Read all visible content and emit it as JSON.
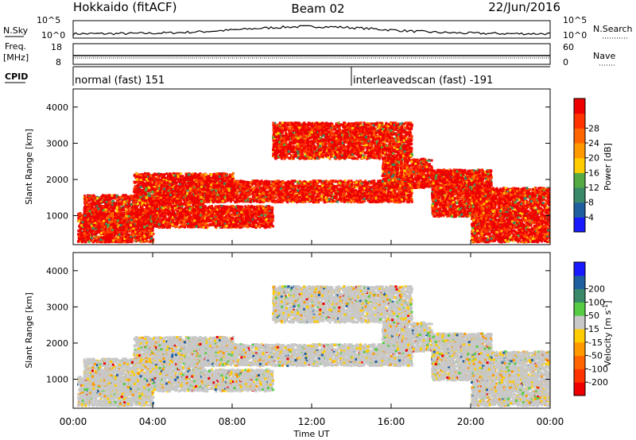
{
  "header": {
    "title": "Hokkaido (fitACF)",
    "beam": "Beam 02",
    "date": "22/Jun/2016"
  },
  "strips": {
    "nsky_label": "N.Sky",
    "nsearch_label": "N.Search",
    "count_ticks": [
      "10^5",
      "10^0"
    ],
    "freq_label": "Freq.",
    "freq_unit": "[MHz]",
    "freq_ticks": [
      "18",
      "8"
    ],
    "nave_label": "Nave",
    "nave_ticks": [
      "60",
      "0"
    ],
    "cpid_label": "CPID",
    "cpid_segments": [
      {
        "label": "normal (fast) 151",
        "start_hour": 0
      },
      {
        "label": "interleavedscan (fast) -191",
        "start_hour": 14
      }
    ]
  },
  "chart_data": [
    {
      "type": "heatmap",
      "quantity": "power",
      "ylabel": "Slant Range [km]",
      "ylim": [
        200,
        4500
      ],
      "yticks": [
        "1000",
        "2000",
        "3000",
        "4000"
      ],
      "xlim": [
        0,
        24
      ],
      "colorbar": {
        "label": "Power [dB]",
        "tick_labels": [
          "4",
          "8",
          "12",
          "16",
          "20",
          "24",
          "28"
        ],
        "colors": [
          "#1a1aff",
          "#1f5fa0",
          "#3a8a6a",
          "#55aa44",
          "#ffcc00",
          "#ff9900",
          "#ff6600",
          "#ff3300",
          "#ee0000"
        ]
      },
      "echo_bands": [
        {
          "start_hour": 0.2,
          "end_hour": 4.0,
          "range_km": [
            300,
            1100
          ]
        },
        {
          "start_hour": 0.5,
          "end_hour": 6.5,
          "range_km": [
            700,
            1600
          ]
        },
        {
          "start_hour": 3.0,
          "end_hour": 8.0,
          "range_km": [
            1500,
            2200
          ]
        },
        {
          "start_hour": 6.0,
          "end_hour": 17.0,
          "range_km": [
            1400,
            2000
          ]
        },
        {
          "start_hour": 6.0,
          "end_hour": 10.0,
          "range_km": [
            700,
            1300
          ]
        },
        {
          "start_hour": 15.5,
          "end_hour": 18.0,
          "range_km": [
            1800,
            2600
          ]
        },
        {
          "start_hour": 18.0,
          "end_hour": 21.0,
          "range_km": [
            1000,
            2300
          ]
        },
        {
          "start_hour": 20.0,
          "end_hour": 24.0,
          "range_km": [
            300,
            1800
          ]
        },
        {
          "start_hour": 10.0,
          "end_hour": 17.0,
          "range_km": [
            2600,
            3600
          ]
        }
      ]
    },
    {
      "type": "heatmap",
      "quantity": "velocity",
      "ylabel": "Slant Range [km]",
      "ylim": [
        200,
        4500
      ],
      "yticks": [
        "1000",
        "2000",
        "3000",
        "4000"
      ],
      "xlabel": "Time UT",
      "xlim": [
        0,
        24
      ],
      "xticks": [
        "00:00",
        "04:00",
        "08:00",
        "12:00",
        "16:00",
        "20:00",
        "00:00"
      ],
      "colorbar": {
        "label": "Velocity [m s",
        "label_sup": "-1",
        "label_end": "]",
        "tick_labels": [
          "-200",
          "-100",
          "-50",
          "-15",
          "15",
          "50",
          "100",
          "200"
        ],
        "colors": [
          "#ee0000",
          "#ff3300",
          "#ff6600",
          "#ff9900",
          "#ffcc00",
          "#c8c8c8",
          "#55cc44",
          "#3a8a6a",
          "#1f5fa0",
          "#1a1aff"
        ]
      },
      "ground_color": "#c8c8c8"
    }
  ]
}
